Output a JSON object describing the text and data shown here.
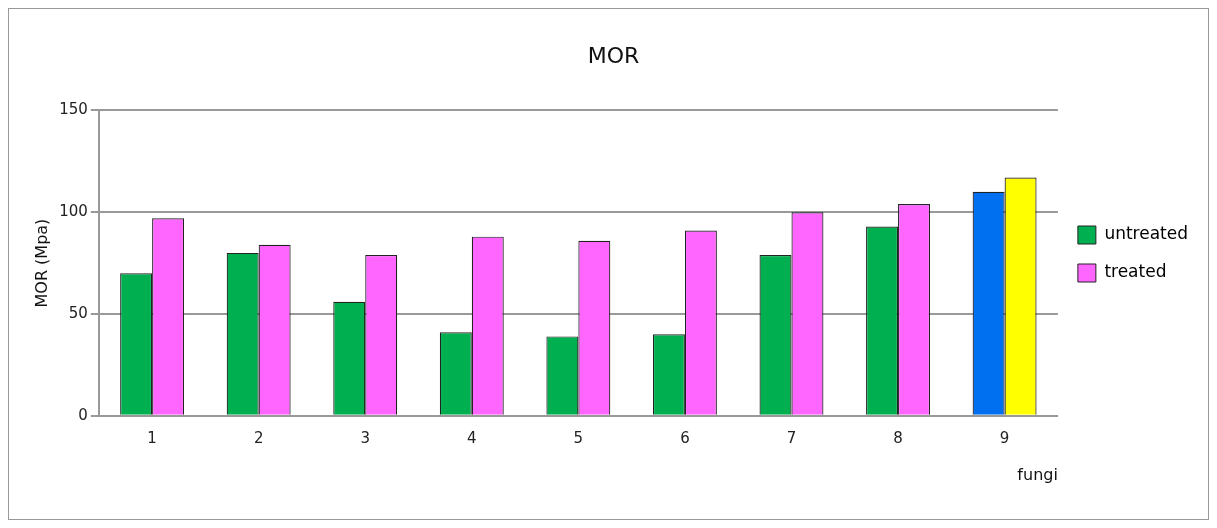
{
  "chart_data": {
    "type": "bar",
    "title": "MOR",
    "xlabel": "fungi",
    "ylabel": "MOR (Mpa)",
    "categories": [
      "1",
      "2",
      "3",
      "4",
      "5",
      "6",
      "7",
      "8",
      "9"
    ],
    "series": [
      {
        "name": "untreated",
        "color": "#00b050",
        "colors": [
          "#00b050",
          "#00b050",
          "#00b050",
          "#00b050",
          "#00b050",
          "#00b050",
          "#00b050",
          "#00b050",
          "#0070f0"
        ],
        "values": [
          70,
          80,
          56,
          41,
          39,
          40,
          79,
          93,
          110
        ]
      },
      {
        "name": "treated",
        "color": "#ff66ff",
        "colors": [
          "#ff66ff",
          "#ff66ff",
          "#ff66ff",
          "#ff66ff",
          "#ff66ff",
          "#ff66ff",
          "#ff66ff",
          "#ff66ff",
          "#ffff00"
        ],
        "values": [
          97,
          84,
          79,
          88,
          86,
          91,
          100,
          104,
          117
        ]
      }
    ],
    "ylim": [
      0,
      150
    ],
    "yticks": [
      0,
      50,
      100,
      150
    ],
    "grid": "y",
    "legend": "right"
  }
}
